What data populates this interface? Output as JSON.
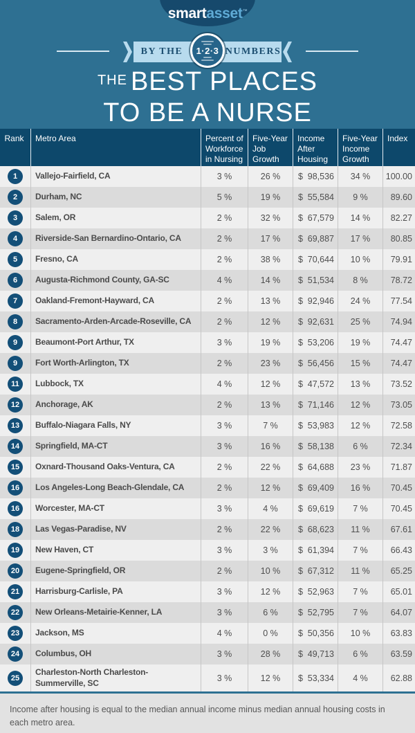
{
  "brand": {
    "part1": "smart",
    "part2": "asset",
    "tm": "™"
  },
  "banner": {
    "left_text": "BY THE",
    "badge": "1·2·3",
    "right_text": "NUMBERS"
  },
  "title": {
    "the": "THE",
    "line1": "BEST PLACES",
    "line2": "TO BE A NURSE"
  },
  "chart_data": {
    "type": "table",
    "title": "The Best Places to Be a Nurse",
    "columns": [
      "Rank",
      "Metro Area",
      "Percent of\nWorkforce\nin Nursing",
      "Five-Year\nJob\nGrowth",
      "Income\nAfter\nHousing",
      "Five-Year\nIncome\nGrowth",
      "Index"
    ],
    "currency_symbol": "$",
    "rows": [
      {
        "rank": "1",
        "metro": "Vallejo-Fairfield, CA",
        "pct_workforce": "3 %",
        "job_growth": "26 %",
        "income_after_housing": "98,536",
        "income_growth": "34 %",
        "index": "100.00"
      },
      {
        "rank": "2",
        "metro": "Durham, NC",
        "pct_workforce": "5 %",
        "job_growth": "19 %",
        "income_after_housing": "55,584",
        "income_growth": "9 %",
        "index": "89.60"
      },
      {
        "rank": "3",
        "metro": "Salem, OR",
        "pct_workforce": "2 %",
        "job_growth": "32 %",
        "income_after_housing": "67,579",
        "income_growth": "14 %",
        "index": "82.27"
      },
      {
        "rank": "4",
        "metro": "Riverside-San Bernardino-Ontario, CA",
        "pct_workforce": "2 %",
        "job_growth": "17 %",
        "income_after_housing": "69,887",
        "income_growth": "17 %",
        "index": "80.85"
      },
      {
        "rank": "5",
        "metro": "Fresno, CA",
        "pct_workforce": "2 %",
        "job_growth": "38 %",
        "income_after_housing": "70,644",
        "income_growth": "10 %",
        "index": "79.91"
      },
      {
        "rank": "6",
        "metro": "Augusta-Richmond County, GA-SC",
        "pct_workforce": "4 %",
        "job_growth": "14 %",
        "income_after_housing": "51,534",
        "income_growth": "8 %",
        "index": "78.72"
      },
      {
        "rank": "7",
        "metro": "Oakland-Fremont-Hayward, CA",
        "pct_workforce": "2 %",
        "job_growth": "13 %",
        "income_after_housing": "92,946",
        "income_growth": "24 %",
        "index": "77.54"
      },
      {
        "rank": "8",
        "metro": "Sacramento-Arden-Arcade-Roseville, CA",
        "pct_workforce": "2 %",
        "job_growth": "12 %",
        "income_after_housing": "92,631",
        "income_growth": "25 %",
        "index": "74.94"
      },
      {
        "rank": "9",
        "metro": "Beaumont-Port Arthur, TX",
        "pct_workforce": "3 %",
        "job_growth": "19 %",
        "income_after_housing": "53,206",
        "income_growth": "19 %",
        "index": "74.47"
      },
      {
        "rank": "9",
        "metro": "Fort Worth-Arlington, TX",
        "pct_workforce": "2 %",
        "job_growth": "23 %",
        "income_after_housing": "56,456",
        "income_growth": "15 %",
        "index": "74.47"
      },
      {
        "rank": "11",
        "metro": "Lubbock, TX",
        "pct_workforce": "4 %",
        "job_growth": "12 %",
        "income_after_housing": "47,572",
        "income_growth": "13 %",
        "index": "73.52"
      },
      {
        "rank": "12",
        "metro": "Anchorage, AK",
        "pct_workforce": "2 %",
        "job_growth": "13 %",
        "income_after_housing": "71,146",
        "income_growth": "12 %",
        "index": "73.05"
      },
      {
        "rank": "13",
        "metro": "Buffalo-Niagara Falls, NY",
        "pct_workforce": "3 %",
        "job_growth": "7 %",
        "income_after_housing": "53,983",
        "income_growth": "12 %",
        "index": "72.58"
      },
      {
        "rank": "14",
        "metro": "Springfield, MA-CT",
        "pct_workforce": "3 %",
        "job_growth": "16 %",
        "income_after_housing": "58,138",
        "income_growth": "6 %",
        "index": "72.34"
      },
      {
        "rank": "15",
        "metro": "Oxnard-Thousand Oaks-Ventura, CA",
        "pct_workforce": "2 %",
        "job_growth": "22 %",
        "income_after_housing": "64,688",
        "income_growth": "23 %",
        "index": "71.87"
      },
      {
        "rank": "16",
        "metro": "Los Angeles-Long Beach-Glendale, CA",
        "pct_workforce": "2 %",
        "job_growth": "12 %",
        "income_after_housing": "69,409",
        "income_growth": "16 %",
        "index": "70.45"
      },
      {
        "rank": "16",
        "metro": "Worcester, MA-CT",
        "pct_workforce": "3 %",
        "job_growth": "4 %",
        "income_after_housing": "69,619",
        "income_growth": "7 %",
        "index": "70.45"
      },
      {
        "rank": "18",
        "metro": "Las Vegas-Paradise, NV",
        "pct_workforce": "2 %",
        "job_growth": "22 %",
        "income_after_housing": "68,623",
        "income_growth": "11 %",
        "index": "67.61"
      },
      {
        "rank": "19",
        "metro": "New Haven, CT",
        "pct_workforce": "3 %",
        "job_growth": "3 %",
        "income_after_housing": "61,394",
        "income_growth": "7 %",
        "index": "66.43"
      },
      {
        "rank": "20",
        "metro": "Eugene-Springfield, OR",
        "pct_workforce": "2 %",
        "job_growth": "10 %",
        "income_after_housing": "67,312",
        "income_growth": "11 %",
        "index": "65.25"
      },
      {
        "rank": "21",
        "metro": "Harrisburg-Carlisle, PA",
        "pct_workforce": "3 %",
        "job_growth": "12 %",
        "income_after_housing": "52,963",
        "income_growth": "7 %",
        "index": "65.01"
      },
      {
        "rank": "22",
        "metro": "New Orleans-Metairie-Kenner, LA",
        "pct_workforce": "3 %",
        "job_growth": "6 %",
        "income_after_housing": "52,795",
        "income_growth": "7 %",
        "index": "64.07"
      },
      {
        "rank": "23",
        "metro": "Jackson, MS",
        "pct_workforce": "4 %",
        "job_growth": "0 %",
        "income_after_housing": "50,356",
        "income_growth": "10 %",
        "index": "63.83"
      },
      {
        "rank": "24",
        "metro": "Columbus, OH",
        "pct_workforce": "3 %",
        "job_growth": "28 %",
        "income_after_housing": "49,713",
        "income_growth": "6 %",
        "index": "63.59"
      },
      {
        "rank": "25",
        "metro": "Charleston-North Charleston-Summerville, SC",
        "pct_workforce": "3 %",
        "job_growth": "12 %",
        "income_after_housing": "53,334",
        "income_growth": "4 %",
        "index": "62.88"
      }
    ]
  },
  "footnote": "Income after housing is equal to the median annual income minus median annual housing costs in each metro area.",
  "colors": {
    "background_teal": "#2E7092",
    "logo_navy": "#16496C",
    "logo_accent_blue": "#5FABD6",
    "ribbon_lightblue": "#B8DBEE",
    "ribbon_text_navy": "#1D4F71",
    "header_bar_navy": "#0D486B",
    "rank_badge_navy": "#134F78",
    "row_light": "#EFEFEF",
    "row_dark": "#DBDBDB",
    "footnote_bg": "#E2E2E2",
    "title_white": "#FFFFFF"
  }
}
